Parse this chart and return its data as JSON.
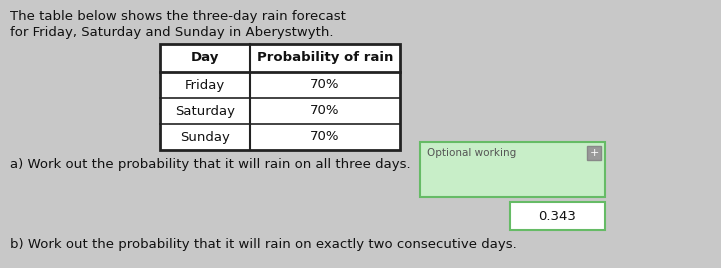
{
  "bg_color": "#c8c8c8",
  "title_text_line1": "The table below shows the three-day rain forecast",
  "title_text_line2": "for Friday, Saturday and Sunday in Aberystwyth.",
  "table_headers": [
    "Day",
    "Probability of rain"
  ],
  "table_rows": [
    [
      "Friday",
      "70%"
    ],
    [
      "Saturday",
      "70%"
    ],
    [
      "Sunday",
      "70%"
    ]
  ],
  "question_a": "a) Work out the probability that it will rain on all three days.",
  "question_b": "b) Work out the probability that it will rain on exactly two consecutive days.",
  "optional_working_label": "Optional working",
  "answer_value": "0.343",
  "optional_box_color": "#c8eec8",
  "answer_box_color": "#ffffff",
  "text_color": "#111111",
  "table_border_color": "#222222",
  "optional_border_color": "#66bb66",
  "answer_border_color": "#66bb66"
}
